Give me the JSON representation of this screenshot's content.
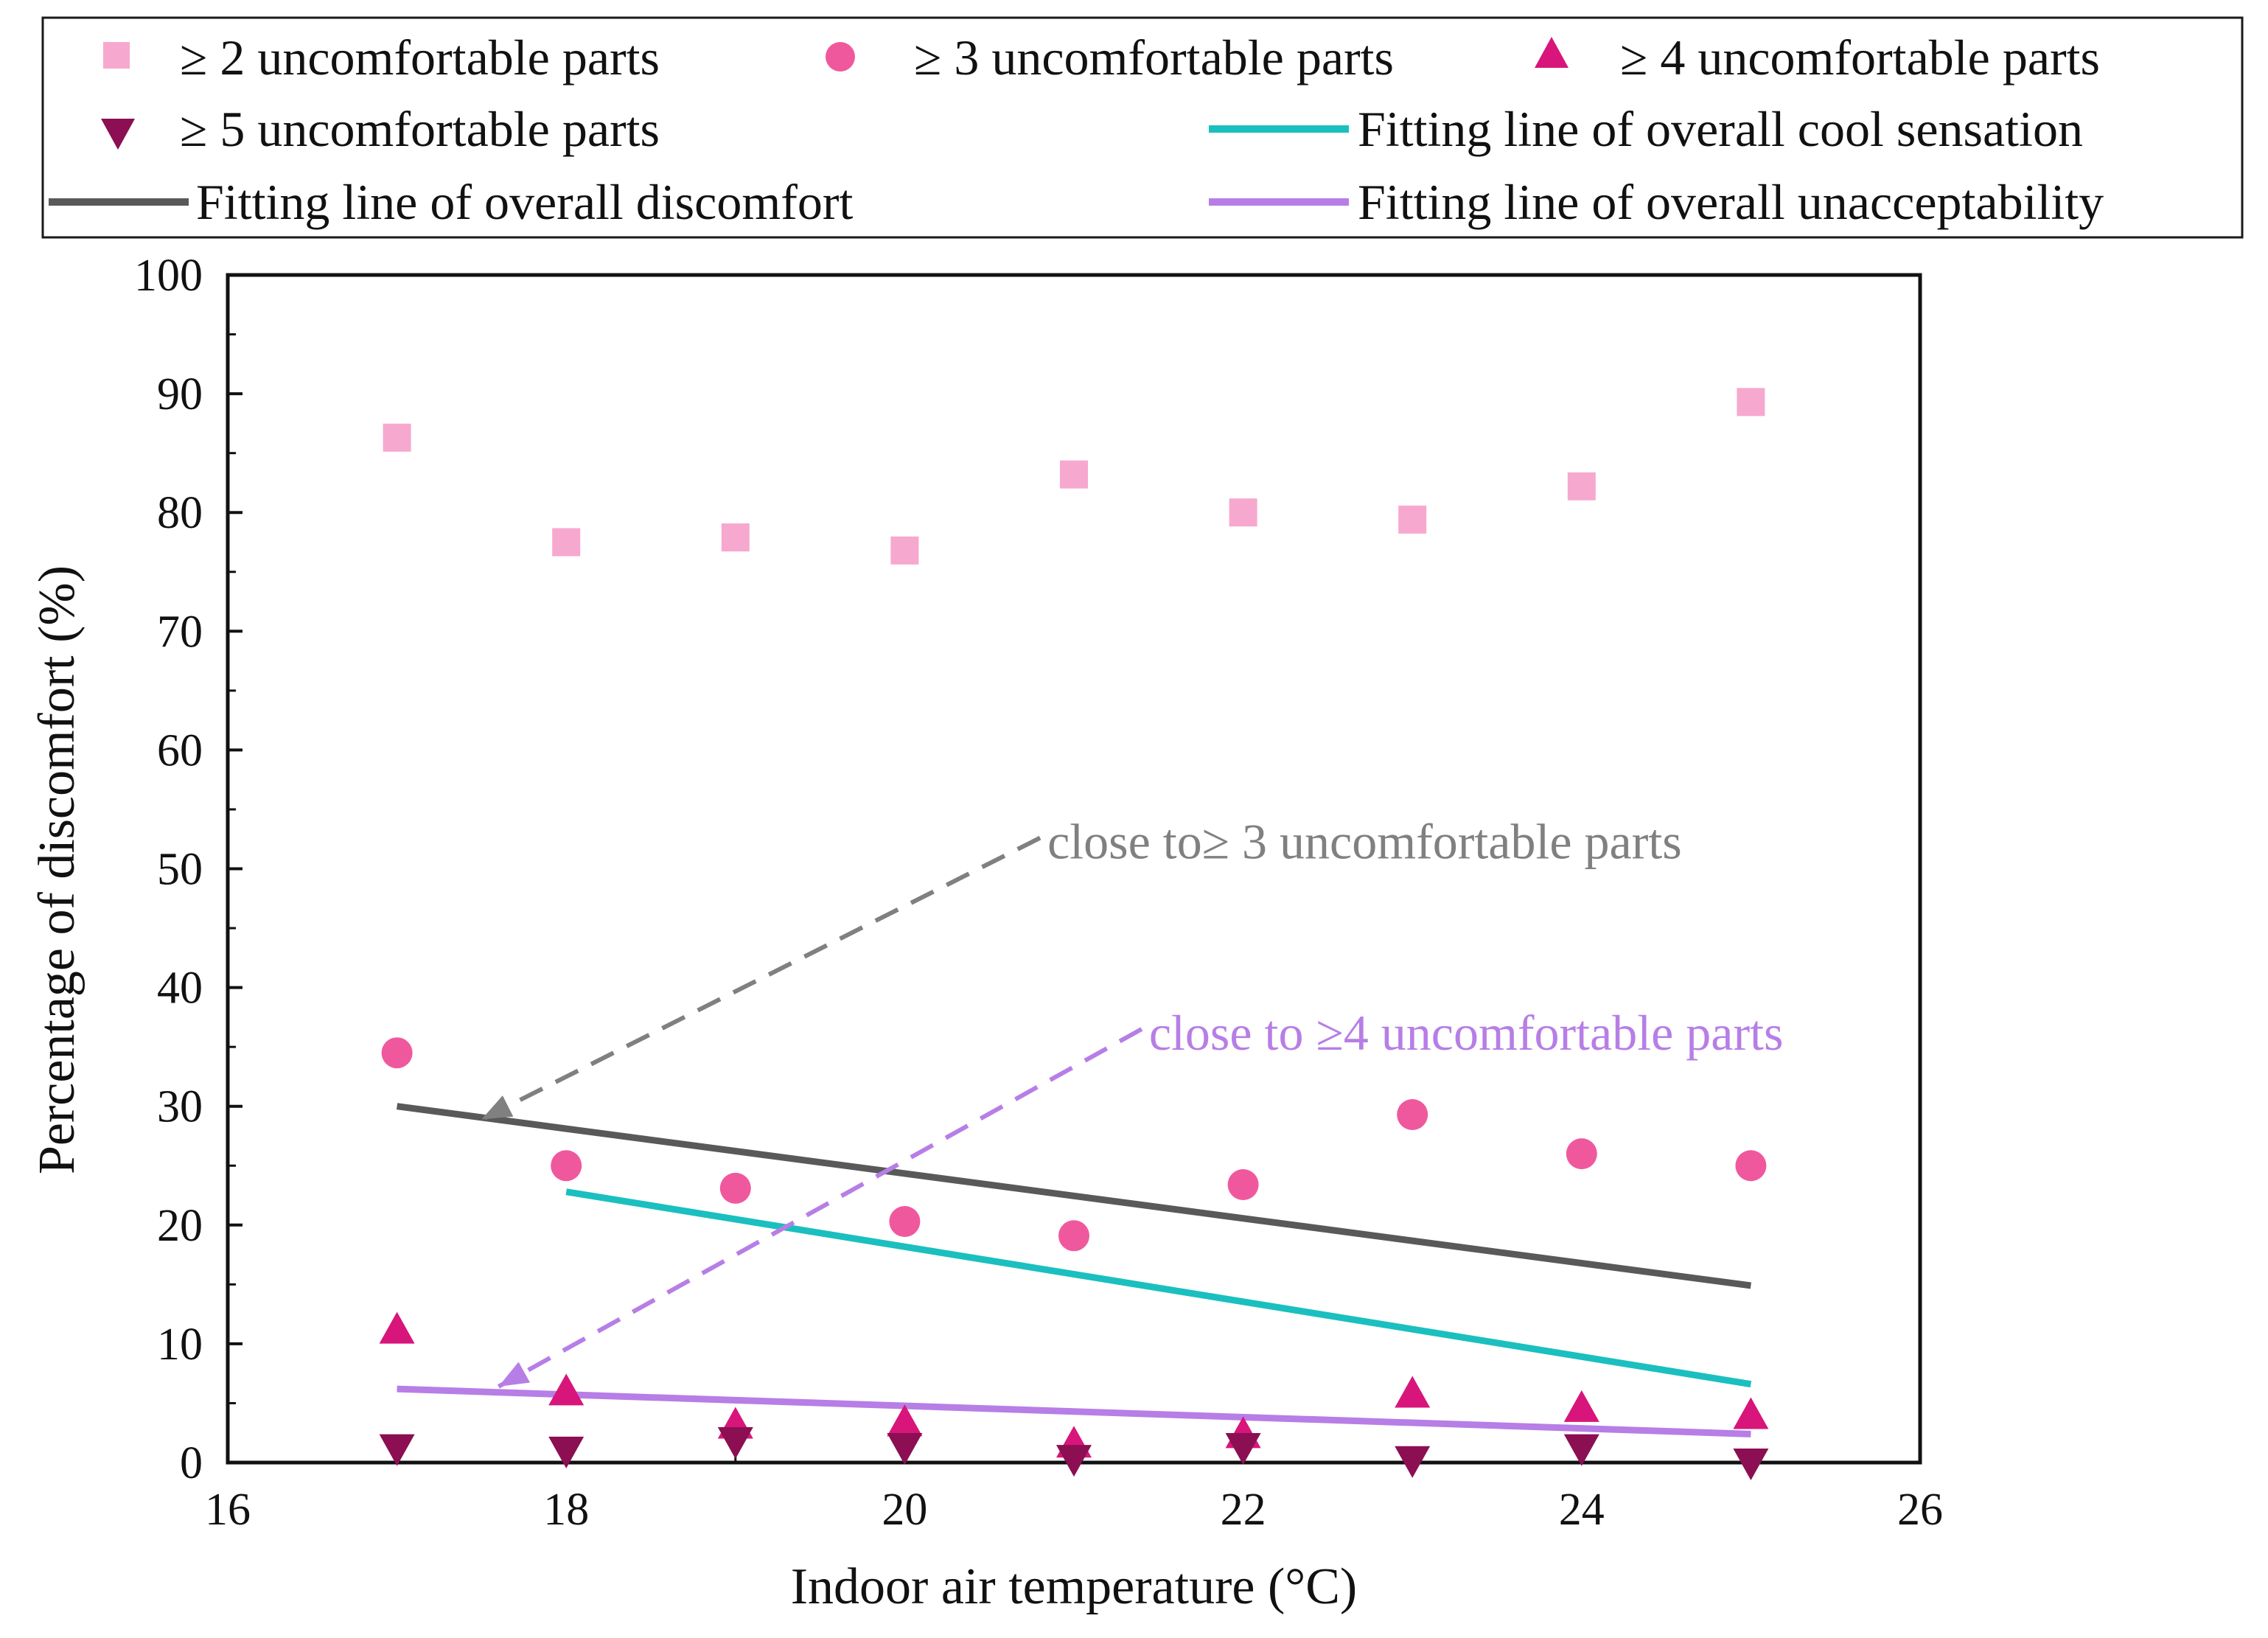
{
  "chart_data": {
    "type": "scatter",
    "title": "",
    "xlabel": "Indoor air temperature (°C)",
    "ylabel": "Percentage of  discomfort (%)",
    "xlim": [
      16,
      26
    ],
    "ylim": [
      0,
      100
    ],
    "xticks": [
      16,
      18,
      20,
      22,
      24,
      26
    ],
    "yticks": [
      0,
      10,
      20,
      30,
      40,
      50,
      60,
      70,
      80,
      90,
      100
    ],
    "series": [
      {
        "name": "≥ 2  uncomfortable parts",
        "marker": "square",
        "color": "#f7a8cf",
        "x": [
          17,
          18,
          19,
          20,
          21,
          22,
          23,
          24,
          25
        ],
        "y": [
          86.3,
          77.5,
          77.9,
          76.8,
          83.2,
          80.0,
          79.4,
          82.2,
          89.3
        ]
      },
      {
        "name": "≥ 3 uncomfortable parts",
        "marker": "circle",
        "color": "#f0589e",
        "x": [
          17,
          18,
          19,
          20,
          21,
          22,
          23,
          24,
          25
        ],
        "y": [
          34.5,
          25.0,
          23.1,
          20.3,
          19.1,
          23.4,
          29.3,
          26.0,
          25.0
        ]
      },
      {
        "name": "≥ 4  uncomfortable parts",
        "marker": "triangle-up",
        "color": "#d8157a",
        "x": [
          17,
          18,
          19,
          20,
          21,
          22,
          23,
          24,
          25
        ],
        "y": [
          11.2,
          6.0,
          3.2,
          3.4,
          1.6,
          2.4,
          5.8,
          4.6,
          4.0
        ]
      },
      {
        "name": "≥ 5  uncomfortable parts",
        "marker": "triangle-down",
        "color": "#8b0f52",
        "x": [
          17,
          18,
          19,
          20,
          21,
          22,
          23,
          24,
          25
        ],
        "y": [
          1.2,
          1.0,
          1.8,
          1.3,
          0.3,
          1.3,
          0.2,
          1.2,
          0.0
        ]
      }
    ],
    "fit_lines": [
      {
        "name": "Fitting line of overall cool sensation",
        "color": "#1bbfbf",
        "x": [
          18,
          25
        ],
        "y": [
          22.8,
          6.6
        ]
      },
      {
        "name": "Fitting line of overall discomfort",
        "color": "#595959",
        "x": [
          17,
          25
        ],
        "y": [
          30.0,
          14.9
        ]
      },
      {
        "name": "Fitting line of overall unacceptability",
        "color": "#b77ee6",
        "x": [
          17,
          25
        ],
        "y": [
          6.2,
          2.4
        ]
      }
    ],
    "annotations": [
      {
        "text": "close to≥ 3 uncomfortable parts",
        "color": "#808080",
        "from": [
          20.8,
          52.6
        ],
        "to": [
          17.5,
          28.9
        ]
      },
      {
        "text": "close to ≥4 uncomfortable parts",
        "color": "#b77ee6",
        "from": [
          21.4,
          36.5
        ],
        "to": [
          17.6,
          6.4
        ]
      }
    ],
    "legend_placement": "top, above plot"
  }
}
